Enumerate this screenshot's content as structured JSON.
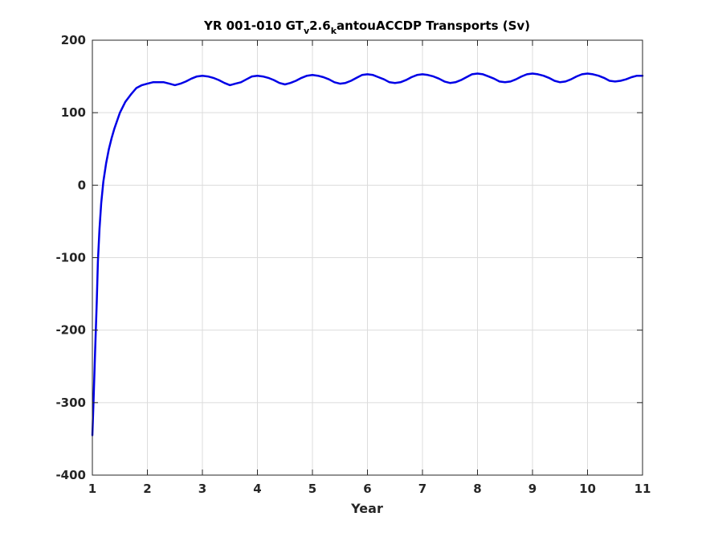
{
  "chart_data": {
    "type": "line",
    "title": {
      "part1": "YR 001-010 GT",
      "sub1": "v",
      "part2": "2.6",
      "sub2": "k",
      "part3": "antouACCDP Transports (Sv)"
    },
    "xlabel": "Year",
    "ylabel": "",
    "xlim": [
      1,
      11
    ],
    "ylim": [
      -400,
      200
    ],
    "xticks": [
      "1",
      "2",
      "3",
      "4",
      "5",
      "6",
      "7",
      "8",
      "9",
      "10",
      "11"
    ],
    "yticks": [
      "-400",
      "-300",
      "-200",
      "-100",
      "0",
      "100",
      "200"
    ],
    "grid": true,
    "series": [
      {
        "color": "#0000e6",
        "x": [
          1.0,
          1.02,
          1.05,
          1.08,
          1.1,
          1.13,
          1.16,
          1.2,
          1.25,
          1.3,
          1.35,
          1.4,
          1.5,
          1.6,
          1.7,
          1.8,
          1.9,
          2.0,
          2.1,
          2.2,
          2.3,
          2.4,
          2.5,
          2.6,
          2.7,
          2.8,
          2.9,
          3.0,
          3.1,
          3.2,
          3.3,
          3.4,
          3.5,
          3.6,
          3.7,
          3.8,
          3.9,
          4.0,
          4.1,
          4.2,
          4.3,
          4.4,
          4.5,
          4.6,
          4.7,
          4.8,
          4.9,
          5.0,
          5.1,
          5.2,
          5.3,
          5.4,
          5.5,
          5.6,
          5.7,
          5.8,
          5.9,
          6.0,
          6.1,
          6.2,
          6.3,
          6.4,
          6.5,
          6.6,
          6.7,
          6.8,
          6.9,
          7.0,
          7.1,
          7.2,
          7.3,
          7.4,
          7.5,
          7.6,
          7.7,
          7.8,
          7.9,
          8.0,
          8.1,
          8.2,
          8.3,
          8.4,
          8.5,
          8.6,
          8.7,
          8.8,
          8.9,
          9.0,
          9.1,
          9.2,
          9.3,
          9.4,
          9.5,
          9.6,
          9.7,
          9.8,
          9.9,
          10.0,
          10.1,
          10.2,
          10.3,
          10.4,
          10.5,
          10.6,
          10.7,
          10.8,
          10.9,
          11.0
        ],
        "y": [
          -345,
          -300,
          -230,
          -160,
          -105,
          -60,
          -25,
          5,
          30,
          50,
          65,
          78,
          100,
          115,
          125,
          134,
          138,
          140,
          142,
          142,
          142,
          140,
          138,
          140,
          143,
          147,
          150,
          151,
          150,
          148,
          145,
          141,
          138,
          140,
          142,
          146,
          150,
          151,
          150,
          148,
          145,
          141,
          139,
          141,
          144,
          148,
          151,
          152,
          151,
          149,
          146,
          142,
          140,
          141,
          144,
          148,
          152,
          153,
          152,
          149,
          146,
          142,
          141,
          142,
          145,
          149,
          152,
          153,
          152,
          150,
          147,
          143,
          141,
          142,
          145,
          149,
          153,
          154,
          153,
          150,
          147,
          143,
          142,
          143,
          146,
          150,
          153,
          154,
          153,
          151,
          148,
          144,
          142,
          143,
          146,
          150,
          153,
          154,
          153,
          151,
          148,
          144,
          143,
          144,
          146,
          149,
          151,
          151
        ]
      }
    ]
  }
}
